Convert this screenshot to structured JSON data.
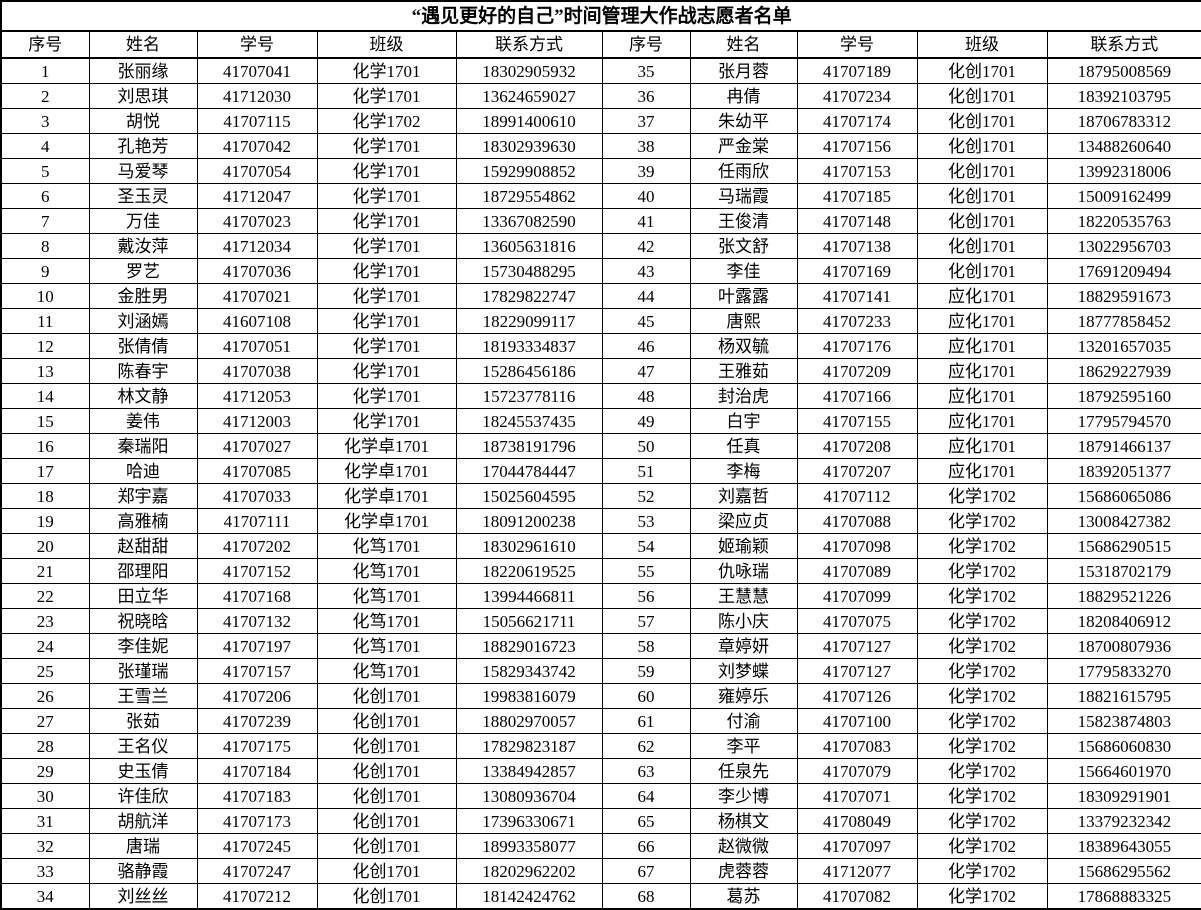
{
  "title": "“遇见更好的自己”时间管理大作战志愿者名单",
  "columns": [
    "序号",
    "姓名",
    "学号",
    "班级",
    "联系方式"
  ],
  "students": [
    {
      "no": "1",
      "name": "张丽缘",
      "student_id": "41707041",
      "class": "化学1701",
      "phone": "18302905932"
    },
    {
      "no": "2",
      "name": "刘思琪",
      "student_id": "41712030",
      "class": "化学1701",
      "phone": "13624659027"
    },
    {
      "no": "3",
      "name": "胡悦",
      "student_id": "41707115",
      "class": "化学1702",
      "phone": "18991400610"
    },
    {
      "no": "4",
      "name": "孔艳芳",
      "student_id": "41707042",
      "class": "化学1701",
      "phone": "18302939630"
    },
    {
      "no": "5",
      "name": "马爱琴",
      "student_id": "41707054",
      "class": "化学1701",
      "phone": "15929908852"
    },
    {
      "no": "6",
      "name": "圣玉灵",
      "student_id": "41712047",
      "class": "化学1701",
      "phone": "18729554862"
    },
    {
      "no": "7",
      "name": "万佳",
      "student_id": "41707023",
      "class": "化学1701",
      "phone": "13367082590"
    },
    {
      "no": "8",
      "name": "戴汝萍",
      "student_id": "41712034",
      "class": "化学1701",
      "phone": "13605631816"
    },
    {
      "no": "9",
      "name": "罗艺",
      "student_id": "41707036",
      "class": "化学1701",
      "phone": "15730488295"
    },
    {
      "no": "10",
      "name": "金胜男",
      "student_id": "41707021",
      "class": "化学1701",
      "phone": "17829822747"
    },
    {
      "no": "11",
      "name": "刘涵嫣",
      "student_id": "41607108",
      "class": "化学1701",
      "phone": "18229099117"
    },
    {
      "no": "12",
      "name": "张倩倩",
      "student_id": "41707051",
      "class": "化学1701",
      "phone": "18193334837"
    },
    {
      "no": "13",
      "name": "陈春宇",
      "student_id": "41707038",
      "class": "化学1701",
      "phone": "15286456186"
    },
    {
      "no": "14",
      "name": "林文静",
      "student_id": "41712053",
      "class": "化学1701",
      "phone": "15723778116"
    },
    {
      "no": "15",
      "name": "姜伟",
      "student_id": "41712003",
      "class": "化学1701",
      "phone": "18245537435"
    },
    {
      "no": "16",
      "name": "秦瑞阳",
      "student_id": "41707027",
      "class": "化学卓1701",
      "phone": "18738191796"
    },
    {
      "no": "17",
      "name": "哈迪",
      "student_id": "41707085",
      "class": "化学卓1701",
      "phone": "17044784447"
    },
    {
      "no": "18",
      "name": "郑宇嘉",
      "student_id": "41707033",
      "class": "化学卓1701",
      "phone": "15025604595"
    },
    {
      "no": "19",
      "name": "高雅楠",
      "student_id": "41707111",
      "class": "化学卓1701",
      "phone": "18091200238"
    },
    {
      "no": "20",
      "name": "赵甜甜",
      "student_id": "41707202",
      "class": "化笃1701",
      "phone": "18302961610"
    },
    {
      "no": "21",
      "name": "邵理阳",
      "student_id": "41707152",
      "class": "化笃1701",
      "phone": "18220619525"
    },
    {
      "no": "22",
      "name": "田立华",
      "student_id": "41707168",
      "class": "化笃1701",
      "phone": "13994466811"
    },
    {
      "no": "23",
      "name": "祝晓晗",
      "student_id": "41707132",
      "class": "化笃1701",
      "phone": "15056621711"
    },
    {
      "no": "24",
      "name": "李佳妮",
      "student_id": "41707197",
      "class": "化笃1701",
      "phone": "18829016723"
    },
    {
      "no": "25",
      "name": "张瑾瑞",
      "student_id": "41707157",
      "class": "化笃1701",
      "phone": "15829343742"
    },
    {
      "no": "26",
      "name": "王雪兰",
      "student_id": "41707206",
      "class": "化创1701",
      "phone": "19983816079"
    },
    {
      "no": "27",
      "name": "张茹",
      "student_id": "41707239",
      "class": "化创1701",
      "phone": "18802970057"
    },
    {
      "no": "28",
      "name": "王名仪",
      "student_id": "41707175",
      "class": "化创1701",
      "phone": "17829823187"
    },
    {
      "no": "29",
      "name": "史玉倩",
      "student_id": "41707184",
      "class": "化创1701",
      "phone": "13384942857"
    },
    {
      "no": "30",
      "name": "许佳欣",
      "student_id": "41707183",
      "class": "化创1701",
      "phone": "13080936704"
    },
    {
      "no": "31",
      "name": "胡航洋",
      "student_id": "41707173",
      "class": "化创1701",
      "phone": "17396330671"
    },
    {
      "no": "32",
      "name": "唐瑞",
      "student_id": "41707245",
      "class": "化创1701",
      "phone": "18993358077"
    },
    {
      "no": "33",
      "name": "骆静霞",
      "student_id": "41707247",
      "class": "化创1701",
      "phone": "18202962202"
    },
    {
      "no": "34",
      "name": "刘丝丝",
      "student_id": "41707212",
      "class": "化创1701",
      "phone": "18142424762"
    },
    {
      "no": "35",
      "name": "张月蓉",
      "student_id": "41707189",
      "class": "化创1701",
      "phone": "18795008569"
    },
    {
      "no": "36",
      "name": "冉倩",
      "student_id": "41707234",
      "class": "化创1701",
      "phone": "18392103795"
    },
    {
      "no": "37",
      "name": "朱幼平",
      "student_id": "41707174",
      "class": "化创1701",
      "phone": "18706783312"
    },
    {
      "no": "38",
      "name": "严金棠",
      "student_id": "41707156",
      "class": "化创1701",
      "phone": "13488260640"
    },
    {
      "no": "39",
      "name": "任雨欣",
      "student_id": "41707153",
      "class": "化创1701",
      "phone": "13992318006"
    },
    {
      "no": "40",
      "name": "马瑞霞",
      "student_id": "41707185",
      "class": "化创1701",
      "phone": "15009162499"
    },
    {
      "no": "41",
      "name": "王俊清",
      "student_id": "41707148",
      "class": "化创1701",
      "phone": "18220535763"
    },
    {
      "no": "42",
      "name": "张文舒",
      "student_id": "41707138",
      "class": "化创1701",
      "phone": "13022956703"
    },
    {
      "no": "43",
      "name": "李佳",
      "student_id": "41707169",
      "class": "化创1701",
      "phone": "17691209494"
    },
    {
      "no": "44",
      "name": "叶露露",
      "student_id": "41707141",
      "class": "应化1701",
      "phone": "18829591673"
    },
    {
      "no": "45",
      "name": "唐熙",
      "student_id": "41707233",
      "class": "应化1701",
      "phone": "18777858452"
    },
    {
      "no": "46",
      "name": "杨双毓",
      "student_id": "41707176",
      "class": "应化1701",
      "phone": "13201657035"
    },
    {
      "no": "47",
      "name": "王雅茹",
      "student_id": "41707209",
      "class": "应化1701",
      "phone": "18629227939"
    },
    {
      "no": "48",
      "name": "封治虎",
      "student_id": "41707166",
      "class": "应化1701",
      "phone": "18792595160"
    },
    {
      "no": "49",
      "name": "白宇",
      "student_id": "41707155",
      "class": "应化1701",
      "phone": "17795794570"
    },
    {
      "no": "50",
      "name": "任真",
      "student_id": "41707208",
      "class": "应化1701",
      "phone": "18791466137"
    },
    {
      "no": "51",
      "name": "李梅",
      "student_id": "41707207",
      "class": "应化1701",
      "phone": "18392051377"
    },
    {
      "no": "52",
      "name": "刘嘉哲",
      "student_id": "41707112",
      "class": "化学1702",
      "phone": "15686065086"
    },
    {
      "no": "53",
      "name": "梁应贞",
      "student_id": "41707088",
      "class": "化学1702",
      "phone": "13008427382"
    },
    {
      "no": "54",
      "name": "姬瑜颖",
      "student_id": "41707098",
      "class": "化学1702",
      "phone": "15686290515"
    },
    {
      "no": "55",
      "name": "仇咏瑞",
      "student_id": "41707089",
      "class": "化学1702",
      "phone": "15318702179"
    },
    {
      "no": "56",
      "name": "王慧慧",
      "student_id": "41707099",
      "class": "化学1702",
      "phone": "18829521226"
    },
    {
      "no": "57",
      "name": "陈小庆",
      "student_id": "41707075",
      "class": "化学1702",
      "phone": "18208406912"
    },
    {
      "no": "58",
      "name": "章婷妍",
      "student_id": "41707127",
      "class": "化学1702",
      "phone": "18700807936"
    },
    {
      "no": "59",
      "name": "刘梦蝶",
      "student_id": "41707127",
      "class": "化学1702",
      "phone": "17795833270"
    },
    {
      "no": "60",
      "name": "雍婷乐",
      "student_id": "41707126",
      "class": "化学1702",
      "phone": "18821615795"
    },
    {
      "no": "61",
      "name": "付渝",
      "student_id": "41707100",
      "class": "化学1702",
      "phone": "15823874803"
    },
    {
      "no": "62",
      "name": "李平",
      "student_id": "41707083",
      "class": "化学1702",
      "phone": "15686060830"
    },
    {
      "no": "63",
      "name": "任泉先",
      "student_id": "41707079",
      "class": "化学1702",
      "phone": "15664601970"
    },
    {
      "no": "64",
      "name": "李少博",
      "student_id": "41707071",
      "class": "化学1702",
      "phone": "18309291901"
    },
    {
      "no": "65",
      "name": "杨棋文",
      "student_id": "41708049",
      "class": "化学1702",
      "phone": "13379232342"
    },
    {
      "no": "66",
      "name": "赵微微",
      "student_id": "41707097",
      "class": "化学1702",
      "phone": "18389643055"
    },
    {
      "no": "67",
      "name": "虎蓉蓉",
      "student_id": "41712077",
      "class": "化学1702",
      "phone": "15686295562"
    },
    {
      "no": "68",
      "name": "葛苏",
      "student_id": "41707082",
      "class": "化学1702",
      "phone": "17868883325"
    }
  ]
}
